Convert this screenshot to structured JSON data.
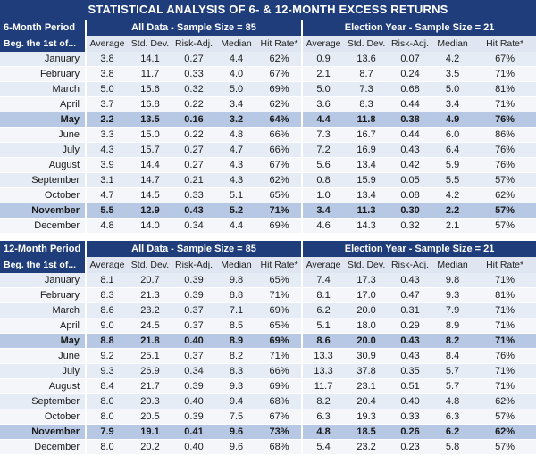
{
  "title": "STATISTICAL ANALYSIS OF 6- & 12-MONTH EXCESS RETURNS",
  "columns": [
    "Average",
    "Std. Dev.",
    "Risk-Adj.",
    "Median",
    "Hit Rate*"
  ],
  "sections": [
    {
      "period_line1": "6-Month Period",
      "period_line2": "Beg. the 1st of...",
      "all_data_header": "All Data - Sample Size = 85",
      "election_header": "Election Year - Sample Size = 21",
      "rows": [
        {
          "month": "January",
          "all": [
            "3.8",
            "14.1",
            "0.27",
            "4.4",
            "62%"
          ],
          "elec": [
            "0.9",
            "13.6",
            "0.07",
            "4.2",
            "67%"
          ]
        },
        {
          "month": "February",
          "all": [
            "3.8",
            "11.7",
            "0.33",
            "4.0",
            "67%"
          ],
          "elec": [
            "2.1",
            "8.7",
            "0.24",
            "3.5",
            "71%"
          ]
        },
        {
          "month": "March",
          "all": [
            "5.0",
            "15.6",
            "0.32",
            "5.0",
            "69%"
          ],
          "elec": [
            "5.0",
            "7.3",
            "0.68",
            "5.0",
            "81%"
          ]
        },
        {
          "month": "April",
          "all": [
            "3.7",
            "16.8",
            "0.22",
            "3.4",
            "62%"
          ],
          "elec": [
            "3.6",
            "8.3",
            "0.44",
            "3.4",
            "71%"
          ]
        },
        {
          "month": "May",
          "highlight": true,
          "all": [
            "2.2",
            "13.5",
            "0.16",
            "3.2",
            "64%"
          ],
          "elec": [
            "4.4",
            "11.8",
            "0.38",
            "4.9",
            "76%"
          ]
        },
        {
          "month": "June",
          "all": [
            "3.3",
            "15.0",
            "0.22",
            "4.8",
            "66%"
          ],
          "elec": [
            "7.3",
            "16.7",
            "0.44",
            "6.0",
            "86%"
          ]
        },
        {
          "month": "July",
          "all": [
            "4.3",
            "15.7",
            "0.27",
            "4.7",
            "66%"
          ],
          "elec": [
            "7.2",
            "16.9",
            "0.43",
            "6.4",
            "76%"
          ]
        },
        {
          "month": "August",
          "all": [
            "3.9",
            "14.4",
            "0.27",
            "4.3",
            "67%"
          ],
          "elec": [
            "5.6",
            "13.4",
            "0.42",
            "5.9",
            "76%"
          ]
        },
        {
          "month": "September",
          "all": [
            "3.1",
            "14.7",
            "0.21",
            "4.3",
            "62%"
          ],
          "elec": [
            "0.8",
            "15.9",
            "0.05",
            "5.5",
            "57%"
          ]
        },
        {
          "month": "October",
          "all": [
            "4.7",
            "14.5",
            "0.33",
            "5.1",
            "65%"
          ],
          "elec": [
            "1.0",
            "13.4",
            "0.08",
            "4.2",
            "62%"
          ]
        },
        {
          "month": "November",
          "highlight": true,
          "all": [
            "5.5",
            "12.9",
            "0.43",
            "5.2",
            "71%"
          ],
          "elec": [
            "3.4",
            "11.3",
            "0.30",
            "2.2",
            "57%"
          ]
        },
        {
          "month": "December",
          "all": [
            "4.8",
            "14.0",
            "0.34",
            "4.4",
            "69%"
          ],
          "elec": [
            "4.6",
            "14.3",
            "0.32",
            "2.1",
            "57%"
          ]
        }
      ]
    },
    {
      "period_line1": "12-Month Period",
      "period_line2": "Beg. the 1st of...",
      "all_data_header": "All Data - Sample Size = 85",
      "election_header": "Election Year - Sample Size = 21",
      "rows": [
        {
          "month": "January",
          "all": [
            "8.1",
            "20.7",
            "0.39",
            "9.8",
            "65%"
          ],
          "elec": [
            "7.4",
            "17.3",
            "0.43",
            "9.8",
            "71%"
          ]
        },
        {
          "month": "February",
          "all": [
            "8.3",
            "21.3",
            "0.39",
            "8.8",
            "71%"
          ],
          "elec": [
            "8.1",
            "17.0",
            "0.47",
            "9.3",
            "81%"
          ]
        },
        {
          "month": "March",
          "all": [
            "8.6",
            "23.2",
            "0.37",
            "7.1",
            "69%"
          ],
          "elec": [
            "6.2",
            "20.0",
            "0.31",
            "7.9",
            "71%"
          ]
        },
        {
          "month": "April",
          "all": [
            "9.0",
            "24.5",
            "0.37",
            "8.5",
            "65%"
          ],
          "elec": [
            "5.1",
            "18.0",
            "0.29",
            "8.9",
            "71%"
          ]
        },
        {
          "month": "May",
          "highlight": true,
          "all": [
            "8.8",
            "21.8",
            "0.40",
            "8.9",
            "69%"
          ],
          "elec": [
            "8.6",
            "20.0",
            "0.43",
            "8.2",
            "71%"
          ]
        },
        {
          "month": "June",
          "all": [
            "9.2",
            "25.1",
            "0.37",
            "8.2",
            "71%"
          ],
          "elec": [
            "13.3",
            "30.9",
            "0.43",
            "8.4",
            "76%"
          ]
        },
        {
          "month": "July",
          "all": [
            "9.3",
            "26.9",
            "0.34",
            "8.3",
            "66%"
          ],
          "elec": [
            "13.3",
            "37.8",
            "0.35",
            "5.7",
            "71%"
          ]
        },
        {
          "month": "August",
          "all": [
            "8.4",
            "21.7",
            "0.39",
            "9.3",
            "69%"
          ],
          "elec": [
            "11.7",
            "23.1",
            "0.51",
            "5.7",
            "71%"
          ]
        },
        {
          "month": "September",
          "all": [
            "8.0",
            "20.3",
            "0.40",
            "9.4",
            "68%"
          ],
          "elec": [
            "8.2",
            "20.4",
            "0.40",
            "4.8",
            "62%"
          ]
        },
        {
          "month": "October",
          "all": [
            "8.0",
            "20.5",
            "0.39",
            "7.5",
            "67%"
          ],
          "elec": [
            "6.3",
            "19.3",
            "0.33",
            "6.3",
            "57%"
          ]
        },
        {
          "month": "November",
          "highlight": true,
          "all": [
            "7.9",
            "19.1",
            "0.41",
            "9.6",
            "73%"
          ],
          "elec": [
            "4.8",
            "18.5",
            "0.26",
            "6.2",
            "62%"
          ]
        },
        {
          "month": "December",
          "all": [
            "8.0",
            "20.2",
            "0.40",
            "9.6",
            "68%"
          ],
          "elec": [
            "5.4",
            "23.2",
            "0.23",
            "5.8",
            "57%"
          ]
        }
      ]
    }
  ]
}
